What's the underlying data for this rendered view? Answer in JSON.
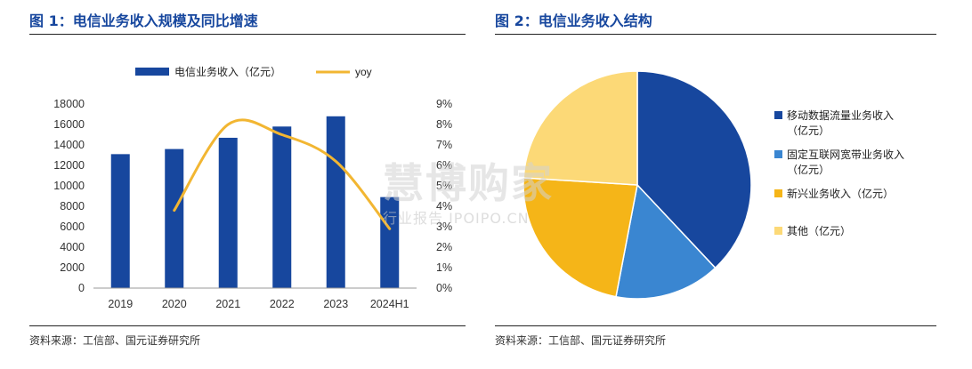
{
  "figures": [
    {
      "title": "图 1：电信业务收入规模及同比增速",
      "source": "资料来源：工信部、国元证券研究所"
    },
    {
      "title": "图 2：电信业务收入结构",
      "source": "资料来源：工信部、国元证券研究所"
    }
  ],
  "watermark": {
    "main": "慧博购家",
    "sub": "行业报告 IPOIPO.CN"
  },
  "chart_data": [
    {
      "type": "bar",
      "categories": [
        "2019",
        "2020",
        "2021",
        "2022",
        "2023",
        "2024H1"
      ],
      "series": [
        {
          "name": "电信业务收入（亿元）",
          "type": "bar",
          "axis": "left",
          "color": "#17479e",
          "values": [
            13100,
            13600,
            14700,
            15800,
            16800,
            8900
          ]
        },
        {
          "name": "yoy",
          "type": "line",
          "axis": "right",
          "color": "#f2b632",
          "values": [
            null,
            3.8,
            8.0,
            7.5,
            6.2,
            2.9
          ]
        }
      ],
      "left_axis": {
        "min": 0,
        "max": 18000,
        "step": 2000,
        "ticks": [
          "0",
          "2000",
          "4000",
          "6000",
          "8000",
          "10000",
          "12000",
          "14000",
          "16000",
          "18000"
        ]
      },
      "right_axis": {
        "min": 0,
        "max": 9,
        "step": 1,
        "ticks": [
          "0%",
          "1%",
          "2%",
          "3%",
          "4%",
          "5%",
          "6%",
          "7%",
          "8%",
          "9%"
        ]
      },
      "legend_position": "top"
    },
    {
      "type": "pie",
      "slices": [
        {
          "label": "移动数据流量业务收入（亿元）",
          "value": 38,
          "color": "#17479e"
        },
        {
          "label": "固定互联网宽带业务收入（亿元）",
          "value": 15,
          "color": "#3a86d1"
        },
        {
          "label": "新兴业务收入（亿元）",
          "value": 23,
          "color": "#f5b518"
        },
        {
          "label": "其他（亿元）",
          "value": 24,
          "color": "#fcd977"
        }
      ],
      "legend_position": "right"
    }
  ]
}
